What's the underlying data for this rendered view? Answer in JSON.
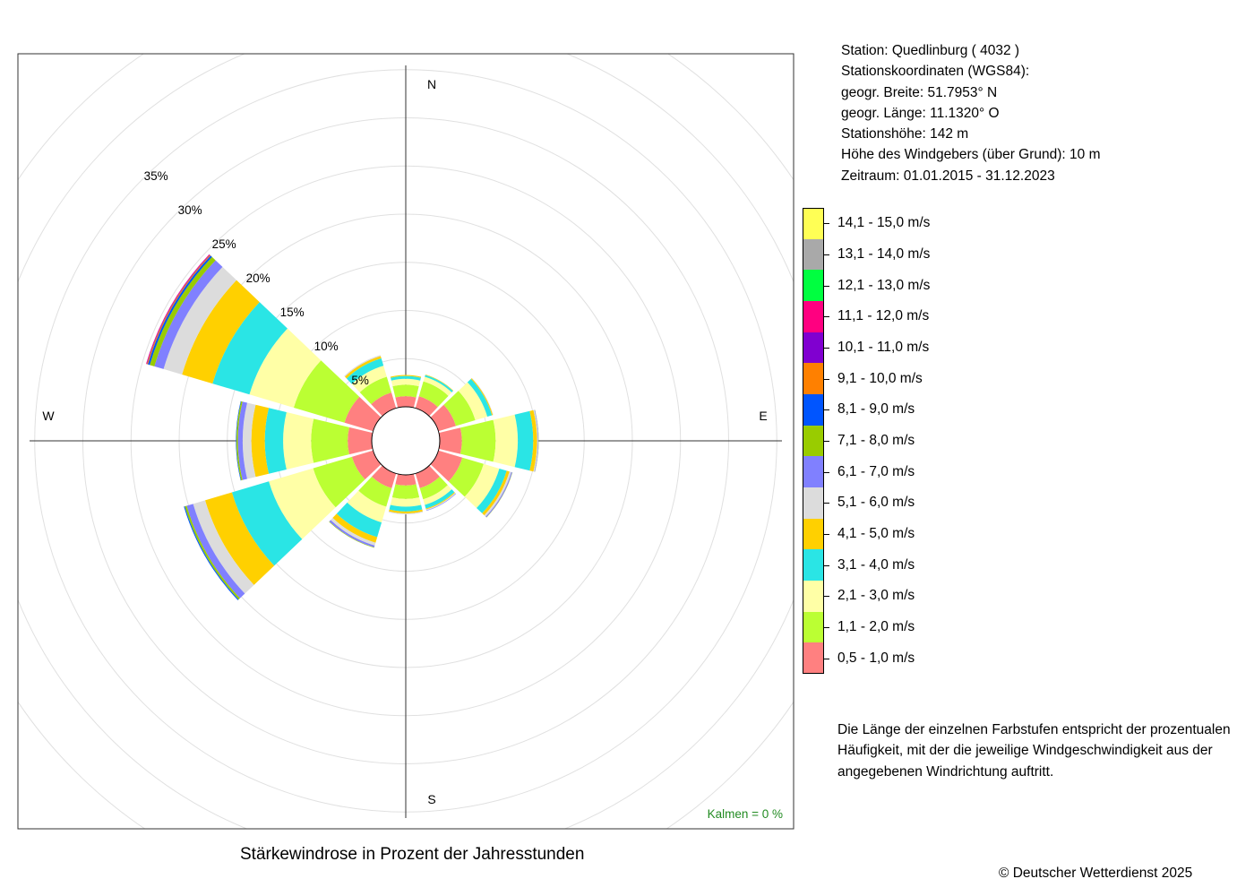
{
  "title": "Stärkewindrose in Prozent der Jahresstunden",
  "copyright": "© Deutscher Wetterdienst  2025",
  "station": {
    "lines": [
      "Station:  Quedlinburg  ( 4032 )",
      "Stationskoordinaten (WGS84):",
      "geogr. Breite: 51.7953° N",
      "geogr. Länge: 11.1320° O",
      "Stationshöhe: 142 m",
      "Höhe des Windgebers (über Grund): 10 m",
      "Zeitraum: 01.01.2015 - 31.12.2023"
    ]
  },
  "note": {
    "lines": [
      "Die Länge der einzelnen Farbstufen entspricht der prozentualen",
      "Häufigkeit, mit der die jeweilige Windgeschwindigkeit aus der",
      "angegebenen Windrichtung auftritt."
    ]
  },
  "calm": "Kalmen  =  0 %",
  "compass": {
    "n": "N",
    "e": "E",
    "s": "S",
    "w": "W"
  },
  "legend": [
    {
      "label": "14,1 - 15,0 m/s",
      "color": "#ffff55"
    },
    {
      "label": "13,1 - 14,0 m/s",
      "color": "#a9a9a9"
    },
    {
      "label": "12,1 - 13,0 m/s",
      "color": "#00ff40"
    },
    {
      "label": "11,1 - 12,0 m/s",
      "color": "#ff0080"
    },
    {
      "label": "10,1 - 11,0 m/s",
      "color": "#8000d0"
    },
    {
      "label": "9,1 - 10,0 m/s",
      "color": "#ff8000"
    },
    {
      "label": "8,1 - 9,0 m/s",
      "color": "#0055ff"
    },
    {
      "label": "7,1 - 8,0 m/s",
      "color": "#99cc00"
    },
    {
      "label": "6,1 - 7,0 m/s",
      "color": "#8080ff"
    },
    {
      "label": "5,1 - 6,0 m/s",
      "color": "#dcdcdc"
    },
    {
      "label": "4,1 - 5,0 m/s",
      "color": "#ffd000"
    },
    {
      "label": "3,1 - 4,0 m/s",
      "color": "#2ae5e5"
    },
    {
      "label": "2,1 - 3,0 m/s",
      "color": "#ffffa6"
    },
    {
      "label": "1,1 - 2,0 m/s",
      "color": "#bbff33"
    },
    {
      "label": "0,5 - 1,0 m/s",
      "color": "#ff8080"
    }
  ],
  "chart_data": {
    "type": "polar-stacked-bar",
    "title": "Stärkewindrose in Prozent der Jahresstunden",
    "unit": "%",
    "rlim": [
      0,
      35
    ],
    "ring_labels": [
      "5%",
      "10%",
      "15%",
      "20%",
      "25%",
      "30%",
      "35%"
    ],
    "ring_values": [
      5,
      10,
      15,
      20,
      25,
      30,
      35
    ],
    "directions_deg": [
      0,
      30,
      60,
      90,
      120,
      150,
      180,
      210,
      240,
      270,
      300,
      330
    ],
    "sector_width_deg": 27,
    "speed_classes": [
      "0,5 - 1,0 m/s",
      "1,1 - 2,0 m/s",
      "2,1 - 3,0 m/s",
      "3,1 - 4,0 m/s",
      "4,1 - 5,0 m/s",
      "5,1 - 6,0 m/s",
      "6,1 - 7,0 m/s",
      "7,1 - 8,0 m/s",
      "8,1 - 9,0 m/s",
      "9,1 - 10,0 m/s",
      "10,1 - 11,0 m/s",
      "11,1 - 12,0 m/s",
      "12,1 - 13,0 m/s",
      "13,1 - 14,0 m/s",
      "14,1 - 15,0 m/s"
    ],
    "series": [
      {
        "direction": 0,
        "values": [
          1.1,
          1.2,
          0.6,
          0.3,
          0.1,
          0,
          0,
          0,
          0,
          0,
          0,
          0,
          0,
          0,
          0
        ]
      },
      {
        "direction": 30,
        "values": [
          1.3,
          1.6,
          0.5,
          0.2,
          0.05,
          0,
          0,
          0,
          0,
          0,
          0,
          0,
          0,
          0,
          0
        ]
      },
      {
        "direction": 60,
        "values": [
          1.9,
          2.1,
          1.3,
          0.5,
          0.1,
          0.05,
          0,
          0,
          0,
          0,
          0,
          0,
          0,
          0,
          0
        ]
      },
      {
        "direction": 90,
        "values": [
          2.3,
          3.5,
          2.3,
          1.6,
          0.4,
          0.1,
          0.05,
          0.02,
          0,
          0,
          0,
          0,
          0,
          0,
          0
        ]
      },
      {
        "direction": 120,
        "values": [
          2.6,
          2.3,
          1.7,
          0.8,
          0.3,
          0.2,
          0.1,
          0.03,
          0,
          0,
          0,
          0,
          0,
          0,
          0
        ]
      },
      {
        "direction": 150,
        "values": [
          1.6,
          1.2,
          0.6,
          0.4,
          0.1,
          0.1,
          0.05,
          0,
          0,
          0,
          0,
          0,
          0,
          0,
          0
        ]
      },
      {
        "direction": 180,
        "values": [
          1.1,
          1.4,
          0.8,
          0.5,
          0.2,
          0.1,
          0,
          0,
          0,
          0,
          0,
          0,
          0,
          0,
          0
        ]
      },
      {
        "direction": 210,
        "values": [
          1.6,
          2.0,
          1.7,
          1.6,
          0.6,
          0.3,
          0.2,
          0.05,
          0,
          0,
          0,
          0,
          0,
          0,
          0
        ]
      },
      {
        "direction": 240,
        "values": [
          2.3,
          4.2,
          4.8,
          4.0,
          2.9,
          1.3,
          0.7,
          0.2,
          0.1,
          0,
          0,
          0,
          0,
          0,
          0
        ]
      },
      {
        "direction": 270,
        "values": [
          2.5,
          3.8,
          2.9,
          1.9,
          1.4,
          0.9,
          0.5,
          0.15,
          0.05,
          0,
          0,
          0,
          0,
          0,
          0
        ]
      },
      {
        "direction": 300,
        "values": [
          3.1,
          5.5,
          4.8,
          4.0,
          3.3,
          2.0,
          1.0,
          0.5,
          0.2,
          0.1,
          0.05,
          0.05,
          0,
          0,
          0
        ]
      },
      {
        "direction": 330,
        "values": [
          1.7,
          1.7,
          1.2,
          0.8,
          0.25,
          0.1,
          0,
          0,
          0,
          0,
          0,
          0,
          0,
          0,
          0
        ]
      }
    ],
    "calm_percent": 0
  }
}
